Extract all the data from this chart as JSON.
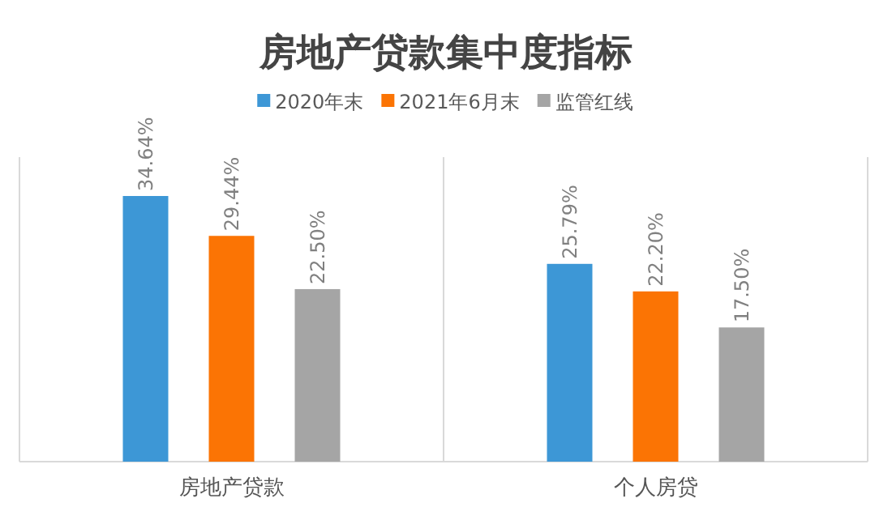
{
  "chart_data": {
    "type": "bar",
    "title": "房地产贷款集中度指标",
    "categories": [
      "房地产贷款",
      "个人房贷"
    ],
    "series": [
      {
        "name": "2020年末",
        "color": "#3d97d6",
        "values": [
          34.64,
          25.79
        ],
        "value_labels": [
          "34.64%",
          "25.79%"
        ]
      },
      {
        "name": "2021年6月末",
        "color": "#fb7404",
        "values": [
          29.44,
          22.2
        ],
        "value_labels": [
          "29.44%",
          "22.20%"
        ]
      },
      {
        "name": "监管红线",
        "color": "#a5a5a5",
        "values": [
          22.5,
          17.5
        ],
        "value_labels": [
          "22.50%",
          "17.50%"
        ]
      }
    ],
    "legend": "top"
  }
}
